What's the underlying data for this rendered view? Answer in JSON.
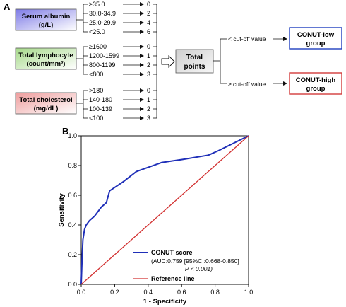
{
  "panel_a": {
    "label": "A",
    "serum_albumin": {
      "title_line1": "Serum albumin",
      "title_line2": "(g/L)",
      "color": "#c9c8f2",
      "rows": [
        {
          "range": "≥35.0",
          "score": "0"
        },
        {
          "range": "30.0-34.9",
          "score": "2"
        },
        {
          "range": "25.0-29.9",
          "score": "4"
        },
        {
          "range": "<25.0",
          "score": "6"
        }
      ]
    },
    "total_lymphocyte": {
      "title_line1": "Total lymphocyte",
      "title_line2": "(count/mm³)",
      "color": "#d9ecc9",
      "rows": [
        {
          "range": "≥1600",
          "score": "0"
        },
        {
          "range": "1200-1599",
          "score": "1"
        },
        {
          "range": "800-1199",
          "score": "2"
        },
        {
          "range": "<800",
          "score": "3"
        }
      ]
    },
    "total_cholesterol": {
      "title_line1": "Total cholesterol",
      "title_line2": "(mg/dL)",
      "color": "#f6d2d2",
      "rows": [
        {
          "range": ">180",
          "score": "0"
        },
        {
          "range": "140-180",
          "score": "1"
        },
        {
          "range": "100-139",
          "score": "2"
        },
        {
          "range": "<100",
          "score": "3"
        }
      ]
    },
    "total_points": {
      "line1": "Total",
      "line2": "points",
      "color": "#d9d9d9"
    },
    "cutoff_low_label": "< cut-off value",
    "cutoff_high_label": "≥ cut-off value",
    "conut_low": {
      "line1": "CONUT-low",
      "line2": "group",
      "border_color": "#1f3fbf"
    },
    "conut_high": {
      "line1": "CONUT-high",
      "line2": "group",
      "border_color": "#d23b3b"
    }
  },
  "panel_b": {
    "label": "B",
    "chart_data": {
      "type": "line",
      "xlabel": "1 - Specificity",
      "ylabel": "Sensitivity",
      "xlim": [
        0,
        1
      ],
      "ylim": [
        0,
        1
      ],
      "x_ticks": [
        "0.0",
        "0.2",
        "0.4",
        "0.6",
        "0.8",
        "1.0"
      ],
      "y_ticks": [
        "0.0",
        "0.2",
        "0.4",
        "0.6",
        "0.8",
        "1.0"
      ],
      "legend_position": "bottom-center",
      "series": [
        {
          "name": "CONUT score",
          "color": "#1f2fb8",
          "x": [
            0,
            0.005,
            0.01,
            0.02,
            0.03,
            0.05,
            0.08,
            0.12,
            0.15,
            0.17,
            0.25,
            0.33,
            0.48,
            0.6,
            0.76,
            0.82,
            1.0
          ],
          "y": [
            0,
            0.17,
            0.3,
            0.37,
            0.4,
            0.43,
            0.46,
            0.52,
            0.55,
            0.63,
            0.69,
            0.76,
            0.82,
            0.84,
            0.87,
            0.9,
            1.0
          ]
        },
        {
          "name": "Reference line",
          "color": "#d23030",
          "x": [
            0,
            1
          ],
          "y": [
            0,
            1
          ]
        }
      ],
      "annotation_line1": "(AUC:0.759 [95%CI:0.668-0.850]",
      "annotation_line2": "P < 0.001)"
    }
  }
}
